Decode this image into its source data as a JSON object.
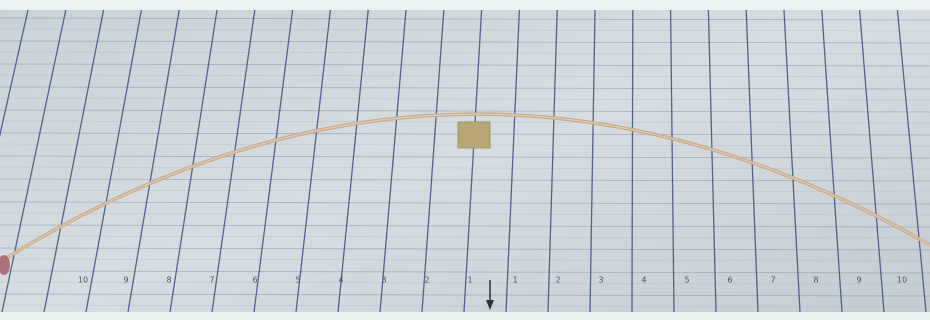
{
  "ruler": {
    "left": [
      "10",
      "9",
      "8",
      "7",
      "6",
      "5",
      "4",
      "3",
      "2",
      "1"
    ],
    "right": [
      "1",
      "2",
      "3",
      "4",
      "5",
      "6",
      "7",
      "8",
      "9",
      "10"
    ]
  }
}
